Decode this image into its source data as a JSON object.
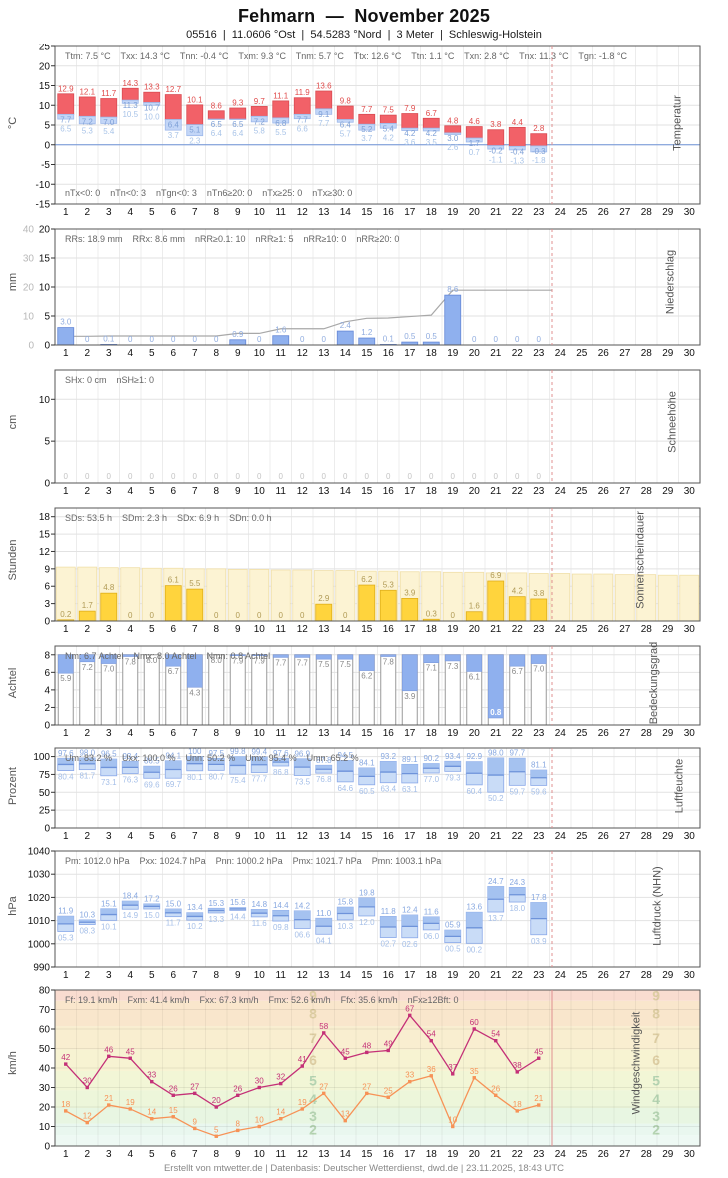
{
  "header": {
    "title": "Fehmarn  —  November 2025",
    "subtitle": "05516  |  11.0606 °Ost  |  54.5283 °Nord  |  3 Meter  |  Schleswig-Holstein"
  },
  "footer": {
    "text": "Erstellt von mtwetter.de | Datenbasis: Deutscher Wetterdienst, dwd.de | 23.11.2025, 18:43 UTC"
  },
  "axis": {
    "days_in_month": 30,
    "days_with_data": 23
  },
  "colors": {
    "temp_max_bar": "#f26168",
    "temp_min_bar": "#c3d6f7",
    "temp_label_max": "#e04b4b",
    "temp_label_min": "#7d9fd6",
    "temp_label_ground": "#a9c4e8",
    "precip_bar": "#8fb0ee",
    "cumline": "#a8a8a8",
    "sun_bar": "#ffd43d",
    "sun_possible": "#fcf3d3",
    "cloud_bar": "#8fb0ee",
    "range_bar": "#c9dcf7",
    "range_bar_dark": "#a5c2f0",
    "wind_gust": "#c43077",
    "wind_mean": "#f79256",
    "today_marker": "#e09090"
  },
  "chart_data": [
    {
      "type": "temperature-range-bar",
      "title": "Temperatur",
      "ylabel": "°C",
      "stats": [
        "Ttm: 7.5 °C",
        "Txx: 14.3 °C",
        "Tnn: -0.4 °C",
        "Txm: 9.3 °C",
        "Tnm: 5.7 °C",
        "Ttx: 12.6 °C",
        "Ttn: 1.1 °C",
        "Txn: 2.8 °C",
        "Tnx: 11.3 °C",
        "Tgn: -1.8 °C"
      ],
      "stats_bottom": [
        "nTx<0: 0",
        "nTn<0: 3",
        "nTgn<0: 3",
        "nTn6≥20: 0",
        "nTx≥25: 0",
        "nTx≥30: 0"
      ],
      "yticks": [
        25,
        20,
        15,
        10,
        5,
        0,
        -5,
        -10,
        -15
      ],
      "ylim": [
        -15,
        25
      ],
      "tmax": [
        12.9,
        12.1,
        11.7,
        14.3,
        13.3,
        12.7,
        10.1,
        8.6,
        9.3,
        9.7,
        11.1,
        11.9,
        13.6,
        9.8,
        7.7,
        7.5,
        7.9,
        6.7,
        4.8,
        4.6,
        3.8,
        4.4,
        2.8
      ],
      "tmin": [
        7.7,
        7.2,
        7.0,
        11.3,
        10.7,
        6.4,
        5.1,
        6.5,
        6.5,
        7.2,
        6.8,
        7.7,
        9.1,
        6.4,
        5.2,
        5.4,
        4.2,
        4.2,
        3.0,
        1.7,
        -0.2,
        -0.4,
        -0.3
      ],
      "tground": [
        6.5,
        5.3,
        5.4,
        10.5,
        10.0,
        3.7,
        2.3,
        6.4,
        6.4,
        5.8,
        5.5,
        6.6,
        7.7,
        5.7,
        3.7,
        4.2,
        3.6,
        3.5,
        2.6,
        0.7,
        -1.1,
        -1.3,
        -1.8
      ]
    },
    {
      "type": "precipitation-bar-cumulative",
      "title": "Niederschlag",
      "ylabel": "mm",
      "stats": [
        "RRs: 18.9 mm",
        "RRx: 8.6 mm",
        "nRR≥0.1: 10",
        "nRR≥1: 5",
        "nRR≥10: 0",
        "nRR≥20: 0"
      ],
      "yticks": [
        20,
        15,
        10,
        5,
        0
      ],
      "ylim": [
        0,
        20
      ],
      "yticks2": [
        40,
        30,
        20,
        10,
        0
      ],
      "ylim2": [
        0,
        40
      ],
      "values": [
        3.0,
        0,
        0.1,
        0,
        0,
        0,
        0,
        0,
        0.9,
        0,
        1.6,
        0,
        0,
        2.4,
        1.2,
        0.1,
        0.5,
        0.5,
        8.6,
        0,
        0,
        0,
        0
      ],
      "cumulative": [
        3.0,
        3.0,
        3.1,
        3.1,
        3.1,
        3.1,
        3.1,
        3.1,
        4.0,
        4.0,
        5.6,
        5.6,
        5.6,
        8.0,
        9.2,
        9.3,
        9.8,
        10.3,
        18.9,
        18.9,
        18.9,
        18.9,
        18.9
      ]
    },
    {
      "type": "snow-depth-bar",
      "title": "Schneehöhe",
      "ylabel": "cm",
      "stats": [
        "SHx: 0 cm",
        "nSH≥1: 0"
      ],
      "yticks": [
        10,
        5,
        0
      ],
      "ylim": [
        0,
        13.5
      ],
      "values": [
        0,
        0,
        0,
        0,
        0,
        0,
        0,
        0,
        0,
        0,
        0,
        0,
        0,
        0,
        0,
        0,
        0,
        0,
        0,
        0,
        0,
        0,
        0
      ]
    },
    {
      "type": "sunshine-bar",
      "title": "Sonnenscheindauer",
      "ylabel": "Stunden",
      "stats": [
        "SDs: 53.5 h",
        "SDm: 2.3 h",
        "SDx: 6.9 h",
        "SDn: 0.0 h"
      ],
      "yticks": [
        18,
        15,
        12,
        9,
        6,
        3,
        0
      ],
      "ylim": [
        0,
        19.5
      ],
      "values": [
        0.2,
        1.7,
        4.8,
        0,
        0,
        6.1,
        5.5,
        0,
        0,
        0,
        0,
        0,
        2.9,
        0,
        6.2,
        5.3,
        3.9,
        0.3,
        0,
        1.6,
        6.9,
        4.2,
        3.8
      ],
      "possible": [
        9.3,
        9.3,
        9.2,
        9.2,
        9.1,
        9.1,
        9.0,
        9.0,
        8.9,
        8.9,
        8.8,
        8.8,
        8.7,
        8.7,
        8.6,
        8.6,
        8.5,
        8.5,
        8.4,
        8.4,
        8.3,
        8.3,
        8.2,
        8.2,
        8.1,
        8.1,
        8.0,
        8.0,
        7.9,
        7.9
      ]
    },
    {
      "type": "cloud-cover-bar",
      "title": "Bedeckungsgrad",
      "ylabel": "Achtel",
      "stats": [
        "Nm: 6.7 Achtel",
        "Nmx: 8.0 Achtel",
        "Nmn: 0.8 Achtel"
      ],
      "yticks": [
        8,
        6,
        4,
        2,
        0
      ],
      "ylim": [
        0,
        9
      ],
      "scale_max": 8,
      "values": [
        5.9,
        7.2,
        7.0,
        7.8,
        8.0,
        6.7,
        4.3,
        8.0,
        7.9,
        7.9,
        7.7,
        7.7,
        7.5,
        7.5,
        6.2,
        7.8,
        3.9,
        7.1,
        7.3,
        6.1,
        0.8,
        6.7,
        7.0
      ]
    },
    {
      "type": "humidity-range-bar",
      "title": "Luftfeuchte",
      "ylabel": "Prozent",
      "stats": [
        "Um: 83.2 %",
        "Uxx: 100.0 %",
        "Unn: 50.2 %",
        "Umx: 95.4 %",
        "Umn: 65.2 %"
      ],
      "yticks": [
        100,
        75,
        50,
        25,
        0
      ],
      "ylim": [
        0,
        112
      ],
      "vmax": [
        97.6,
        98.0,
        96.5,
        93.4,
        86.5,
        94.1,
        100.0,
        97.5,
        99.8,
        99.4,
        97.6,
        96.9,
        87.8,
        94.5,
        84.1,
        93.2,
        89.1,
        90.2,
        93.4,
        92.9,
        98.0,
        97.7,
        81.1
      ],
      "vmin": [
        80.4,
        81.7,
        73.1,
        76.3,
        69.6,
        69.7,
        80.1,
        80.7,
        75.4,
        77.7,
        86.8,
        73.5,
        76.8,
        64.6,
        60.5,
        63.4,
        63.1,
        77.0,
        79.3,
        60.4,
        50.2,
        59.7,
        59.6
      ]
    },
    {
      "type": "pressure-range-bar",
      "title": "Luftdruck (NHN)",
      "ylabel": "hPa",
      "stats": [
        "Pm: 1012.0 hPa",
        "Pxx: 1024.7 hPa",
        "Pnn: 1000.2 hPa",
        "Pmx: 1021.7 hPa",
        "Pmn: 1003.1 hPa"
      ],
      "yticks": [
        1040,
        1030,
        1020,
        1010,
        1000,
        990
      ],
      "ylim": [
        990,
        1040
      ],
      "vmax": [
        1011.9,
        1010.3,
        1015.1,
        1018.4,
        1017.2,
        1015.0,
        1013.4,
        1015.3,
        1015.6,
        1014.8,
        1014.4,
        1014.2,
        1011.0,
        1015.8,
        1019.8,
        1011.8,
        1012.4,
        1011.6,
        1005.9,
        1013.6,
        1024.7,
        1024.3,
        1017.8
      ],
      "vmin": [
        1005.3,
        1008.3,
        1010.1,
        1014.9,
        1015.0,
        1011.7,
        1010.2,
        1013.3,
        1014.4,
        1011.6,
        1009.8,
        1006.6,
        1004.1,
        1010.3,
        1012.0,
        1002.7,
        1002.6,
        1006.0,
        1000.5,
        1000.2,
        1013.7,
        1018.0,
        1003.9
      ]
    },
    {
      "type": "wind-line",
      "title": "Windgeschwindigkeit",
      "ylabel": "km/h",
      "stats": [
        "Ff: 19.1 km/h",
        "Fxm: 41.4 km/h",
        "Fxx: 67.3 km/h",
        "Fmx: 52.6 km/h",
        "Ffx: 35.6 km/h",
        "nFx≥12Bft: 0"
      ],
      "yticks": [
        80,
        70,
        60,
        50,
        40,
        30,
        20,
        10,
        0
      ],
      "ylim": [
        0,
        80
      ],
      "gust": [
        42,
        30,
        46,
        45,
        33,
        26,
        27,
        20,
        26,
        30,
        32,
        41,
        58,
        45,
        48,
        49,
        67,
        54,
        37,
        60,
        54,
        38,
        45
      ],
      "mean": [
        18,
        12,
        21,
        19,
        14,
        15,
        9,
        5,
        8,
        10,
        14,
        19,
        27,
        13,
        27,
        25,
        33,
        36,
        10,
        35,
        26,
        18,
        21
      ],
      "beaufort_labels": [
        2,
        3,
        4,
        5,
        6,
        7,
        8,
        9
      ]
    }
  ]
}
